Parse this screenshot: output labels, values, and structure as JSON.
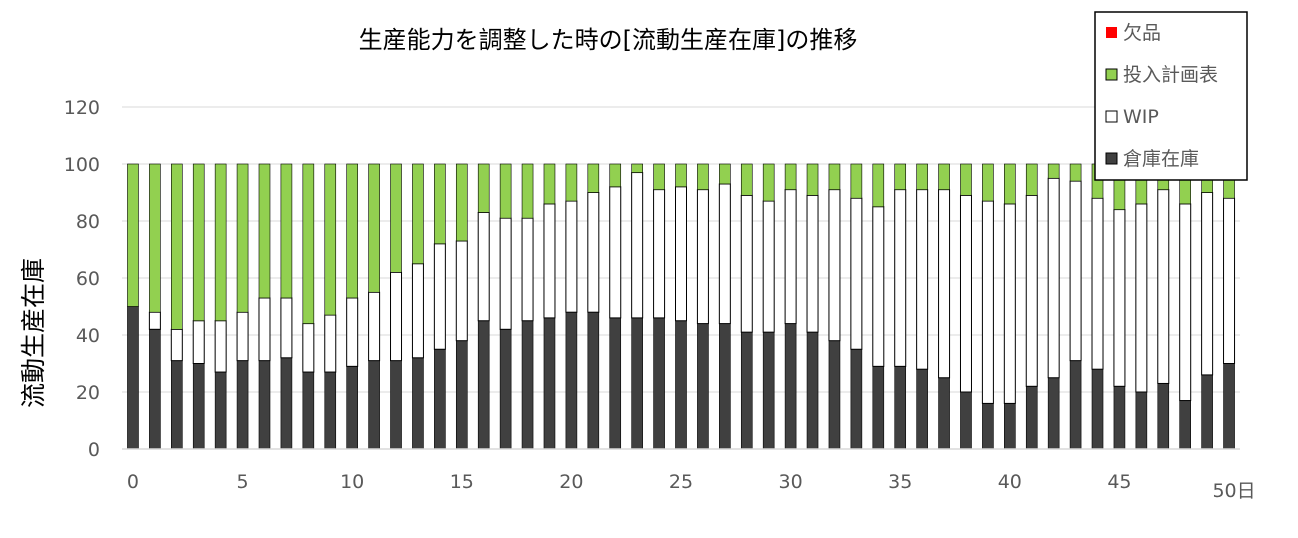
{
  "chart_data": {
    "type": "bar",
    "stacked": true,
    "title": "生産能力を調整した時の[流動生産在庫]の推移",
    "xlabel": "",
    "ylabel": "流動生産在庫",
    "x_last_label": "50日",
    "ylim": [
      0,
      120
    ],
    "yticks": [
      0,
      20,
      40,
      60,
      80,
      100,
      120
    ],
    "xticks": [
      0,
      5,
      10,
      15,
      20,
      25,
      30,
      35,
      40,
      45
    ],
    "grid": true,
    "legend_position": "top-right",
    "x": [
      0,
      1,
      2,
      3,
      4,
      5,
      6,
      7,
      8,
      9,
      10,
      11,
      12,
      13,
      14,
      15,
      16,
      17,
      18,
      19,
      20,
      21,
      22,
      23,
      24,
      25,
      26,
      27,
      28,
      29,
      30,
      31,
      32,
      33,
      34,
      35,
      36,
      37,
      38,
      39,
      40,
      41,
      42,
      43,
      44,
      45,
      46,
      47,
      48,
      49,
      50
    ],
    "series": [
      {
        "name": "倉庫在庫",
        "color": "#404040",
        "values": [
          50,
          42,
          31,
          30,
          27,
          31,
          31,
          32,
          27,
          27,
          29,
          31,
          31,
          32,
          35,
          38,
          45,
          42,
          45,
          46,
          48,
          48,
          46,
          46,
          46,
          45,
          44,
          44,
          41,
          41,
          44,
          41,
          38,
          35,
          29,
          29,
          28,
          25,
          20,
          16,
          16,
          22,
          25,
          31,
          28,
          22,
          20,
          23,
          17,
          26,
          30
        ]
      },
      {
        "name": "WIP",
        "color": "#ffffff",
        "values": [
          0,
          6,
          11,
          15,
          18,
          17,
          22,
          21,
          17,
          20,
          24,
          24,
          31,
          33,
          37,
          35,
          38,
          39,
          36,
          40,
          39,
          42,
          46,
          51,
          45,
          47,
          47,
          49,
          48,
          46,
          47,
          48,
          53,
          53,
          56,
          62,
          63,
          66,
          69,
          71,
          70,
          67,
          70,
          63,
          60,
          62,
          66,
          68,
          69,
          64,
          58
        ]
      },
      {
        "name": "投入計画表",
        "color": "#92d050",
        "values": [
          50,
          52,
          58,
          55,
          55,
          52,
          47,
          47,
          56,
          53,
          47,
          45,
          38,
          35,
          28,
          27,
          17,
          19,
          19,
          14,
          13,
          10,
          8,
          3,
          9,
          8,
          9,
          7,
          11,
          13,
          9,
          11,
          9,
          12,
          15,
          9,
          9,
          9,
          11,
          13,
          14,
          11,
          5,
          6,
          12,
          16,
          14,
          9,
          14,
          10,
          12
        ]
      },
      {
        "name": "欠品",
        "color": "#ff0000",
        "values": [
          0,
          0,
          0,
          0,
          0,
          0,
          0,
          0,
          0,
          0,
          0,
          0,
          0,
          0,
          0,
          0,
          0,
          0,
          0,
          0,
          0,
          0,
          0,
          0,
          0,
          0,
          0,
          0,
          0,
          0,
          0,
          0,
          0,
          0,
          0,
          0,
          0,
          0,
          0,
          0,
          0,
          0,
          0,
          0,
          0,
          0,
          0,
          0,
          0,
          0,
          0
        ]
      }
    ],
    "legend_order": [
      "欠品",
      "投入計画表",
      "WIP",
      "倉庫在庫"
    ]
  }
}
